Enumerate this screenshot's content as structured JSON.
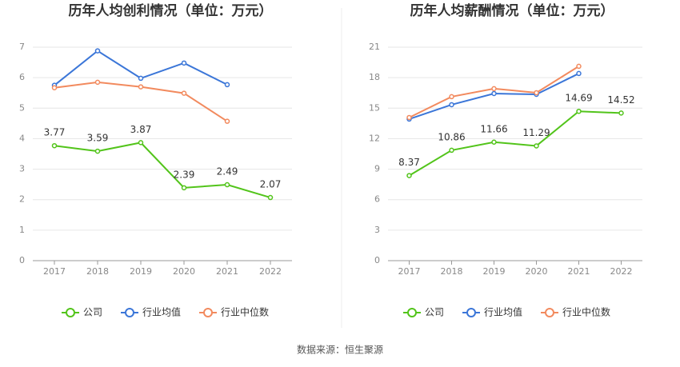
{
  "chart_data": [
    {
      "type": "line",
      "title": "历年人均创利情况（单位：万元）",
      "categories": [
        "2017",
        "2018",
        "2019",
        "2020",
        "2021",
        "2022"
      ],
      "ylim": [
        0,
        7
      ],
      "yticks": [
        0,
        1,
        2,
        3,
        4,
        5,
        6,
        7
      ],
      "grid": true,
      "series": [
        {
          "name": "公司",
          "color": "#52c41a",
          "show_labels": true,
          "values": [
            3.77,
            3.59,
            3.87,
            2.39,
            2.49,
            2.07
          ]
        },
        {
          "name": "行业均值",
          "color": "#3b76d8",
          "values": [
            5.75,
            6.88,
            5.98,
            6.48,
            5.77,
            null
          ]
        },
        {
          "name": "行业中位数",
          "color": "#f28a5e",
          "values": [
            5.67,
            5.85,
            5.7,
            5.49,
            4.57,
            null
          ]
        }
      ]
    },
    {
      "type": "line",
      "title": "历年人均薪酬情况（单位：万元）",
      "categories": [
        "2017",
        "2018",
        "2019",
        "2020",
        "2021",
        "2022"
      ],
      "ylim": [
        0,
        21
      ],
      "yticks": [
        0,
        3,
        6,
        9,
        12,
        15,
        18,
        21
      ],
      "grid": true,
      "series": [
        {
          "name": "公司",
          "color": "#52c41a",
          "show_labels": true,
          "values": [
            8.37,
            10.86,
            11.66,
            11.29,
            14.69,
            14.52
          ]
        },
        {
          "name": "行业均值",
          "color": "#3b76d8",
          "values": [
            13.93,
            15.34,
            16.44,
            16.36,
            18.41,
            null
          ]
        },
        {
          "name": "行业中位数",
          "color": "#f28a5e",
          "values": [
            14.08,
            16.13,
            16.92,
            16.52,
            19.12,
            null
          ]
        }
      ]
    }
  ],
  "source": "数据来源：恒生聚源"
}
